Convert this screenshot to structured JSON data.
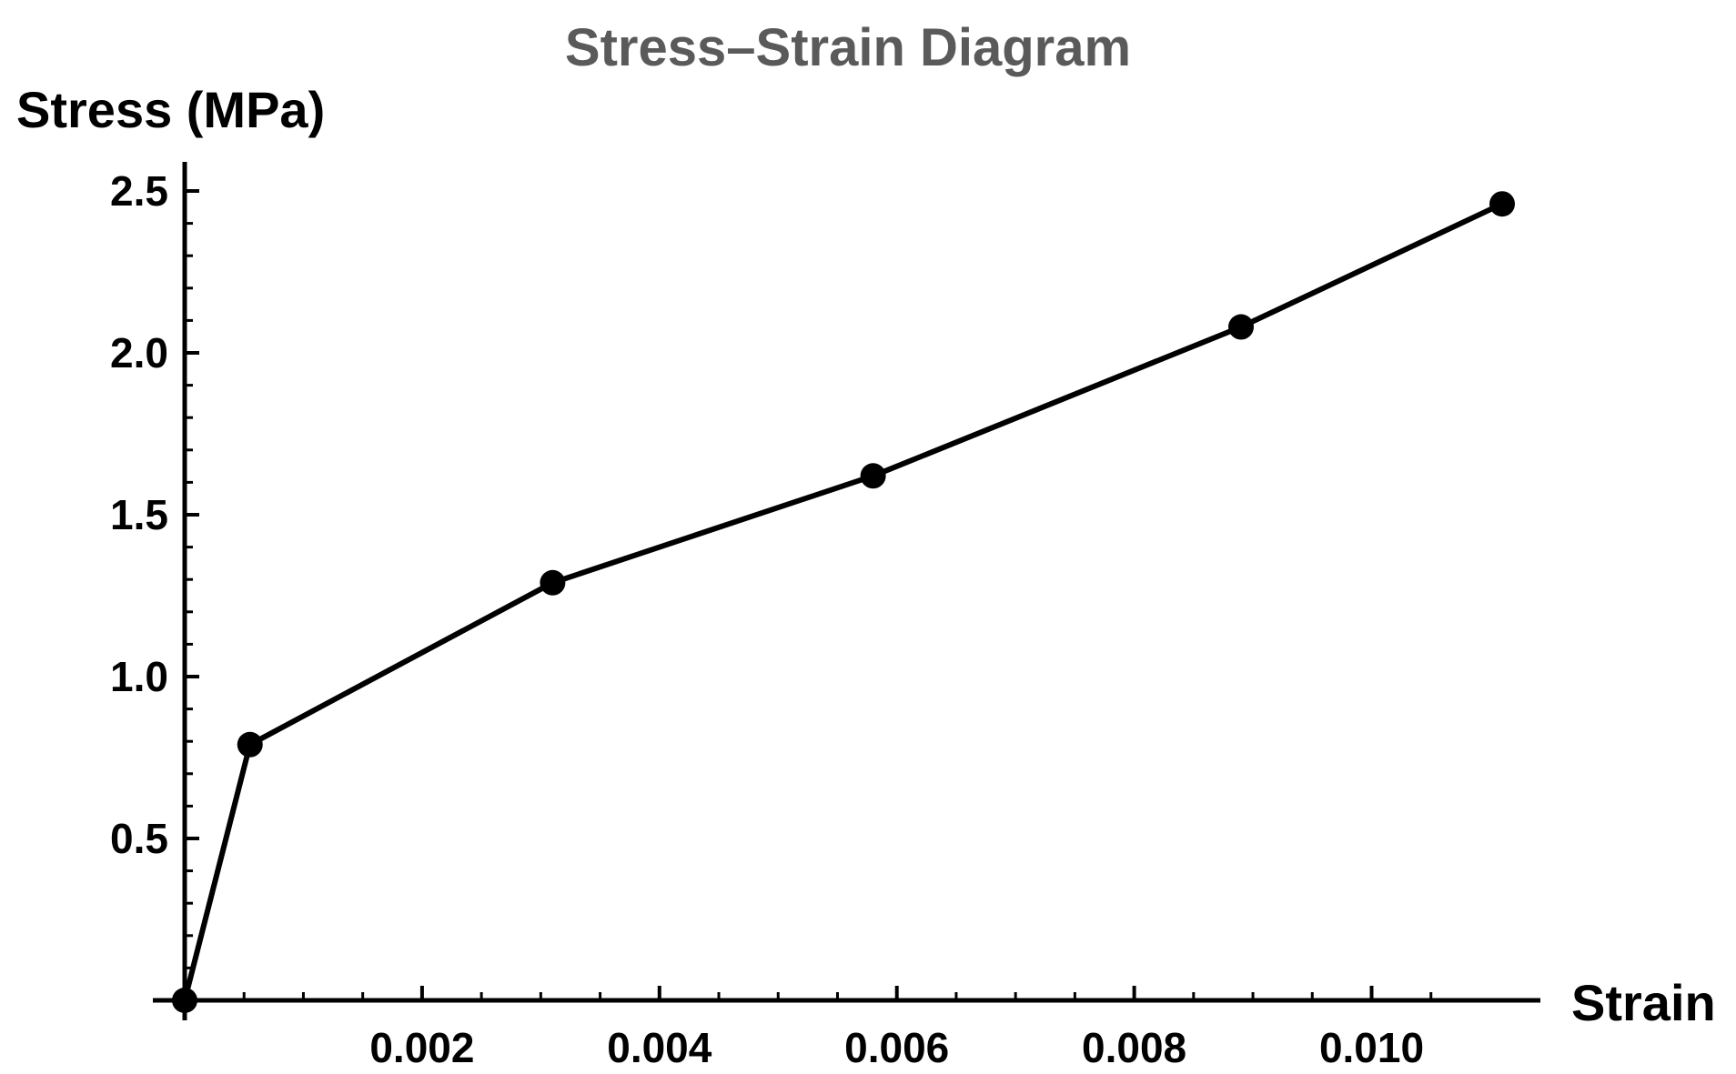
{
  "chart_data": {
    "type": "line",
    "title": "Stress–Strain Diagram",
    "xlabel": "Strain",
    "ylabel": "Stress (MPa)",
    "xlim": [
      0,
      0.0112
    ],
    "ylim": [
      0,
      2.6
    ],
    "x_ticks": [
      0.002,
      0.004,
      0.006,
      0.008,
      0.01
    ],
    "x_tick_labels": [
      "0.002",
      "0.004",
      "0.006",
      "0.008",
      "0.010"
    ],
    "y_ticks": [
      0.5,
      1.0,
      1.5,
      2.0,
      2.5
    ],
    "y_tick_labels": [
      "0.5",
      "1.0",
      "1.5",
      "2.0",
      "2.5"
    ],
    "grid": false,
    "series": [
      {
        "x": [
          0,
          0.00055,
          0.0031,
          0.0058,
          0.0089,
          0.0111
        ],
        "y": [
          0,
          0.79,
          1.29,
          1.62,
          2.08,
          2.46
        ],
        "color": "#000000",
        "marker": "circle"
      }
    ]
  }
}
